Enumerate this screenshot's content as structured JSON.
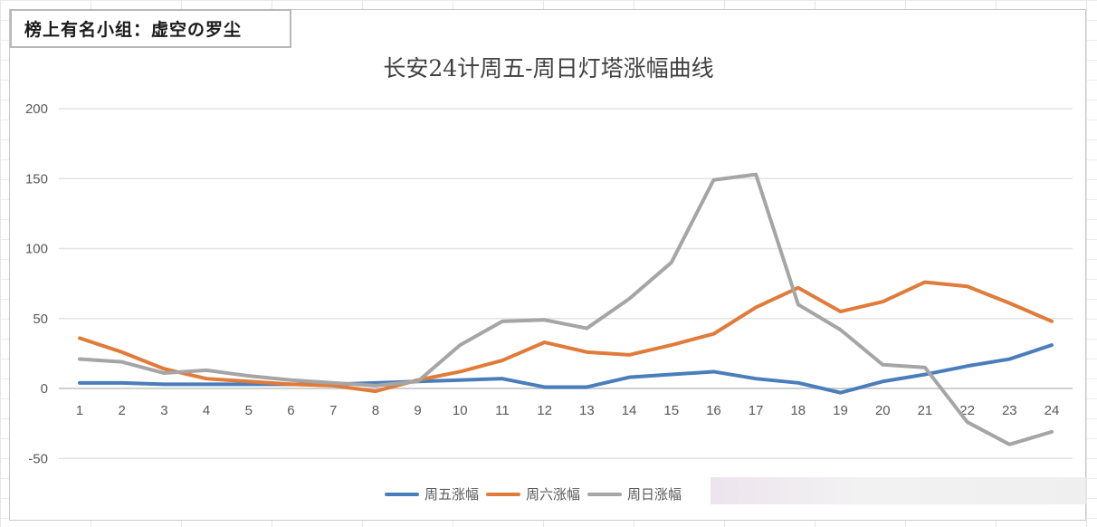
{
  "tag_box": {
    "text": "榜上有名小组：虚空の罗尘"
  },
  "chart_data": {
    "type": "line",
    "title": "长安24计周五-周日灯塔涨幅曲线",
    "xlabel": "",
    "ylabel": "",
    "ylim": [
      -50,
      200
    ],
    "yticks": [
      200,
      150,
      100,
      50,
      0,
      -50
    ],
    "grid": true,
    "legend_position": "bottom",
    "categories": [
      "1",
      "2",
      "3",
      "4",
      "5",
      "6",
      "7",
      "8",
      "9",
      "10",
      "11",
      "12",
      "13",
      "14",
      "15",
      "16",
      "17",
      "18",
      "19",
      "20",
      "21",
      "22",
      "23",
      "24"
    ],
    "series": [
      {
        "name": "周五涨幅",
        "color": "#4a7ebb",
        "values": [
          4,
          4,
          3,
          3,
          3,
          3,
          3,
          4,
          5,
          6,
          7,
          1,
          1,
          8,
          10,
          12,
          7,
          4,
          -3,
          5,
          10,
          16,
          21,
          31
        ]
      },
      {
        "name": "周六涨幅",
        "color": "#e07b39",
        "values": [
          36,
          26,
          14,
          7,
          5,
          3,
          2,
          -2,
          6,
          12,
          20,
          33,
          26,
          24,
          31,
          39,
          58,
          72,
          55,
          62,
          76,
          73,
          61,
          48
        ]
      },
      {
        "name": "周日涨幅",
        "color": "#a5a5a5",
        "values": [
          21,
          19,
          11,
          13,
          9,
          6,
          4,
          2,
          5,
          31,
          48,
          49,
          43,
          64,
          90,
          149,
          153,
          60,
          42,
          17,
          15,
          -24,
          -40,
          -31
        ]
      }
    ]
  },
  "legend": {
    "items": [
      {
        "label": "周五涨幅",
        "color": "#4a7ebb"
      },
      {
        "label": "周六涨幅",
        "color": "#e07b39"
      },
      {
        "label": "周日涨幅",
        "color": "#a5a5a5"
      }
    ]
  }
}
